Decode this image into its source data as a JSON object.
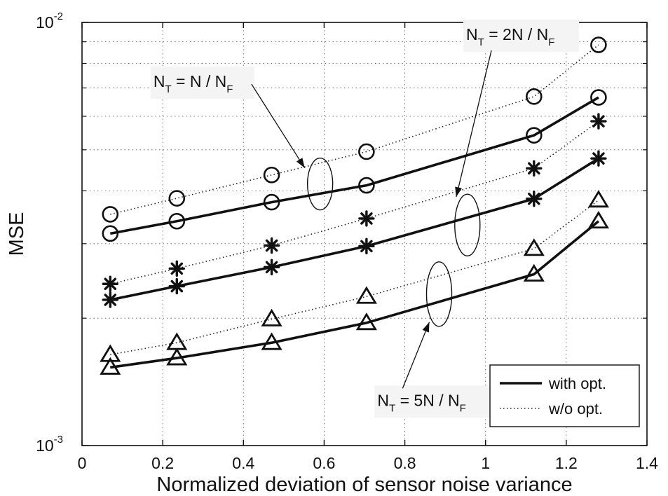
{
  "chart_data": {
    "type": "line",
    "title": "",
    "xlabel": "Normalized deviation of sensor noise variance",
    "ylabel": "MSE",
    "xlim": [
      0,
      1.4
    ],
    "ylim": [
      0.001,
      0.01
    ],
    "yscale": "log",
    "grid": true,
    "x_ticks": [
      "0",
      "0.2",
      "0.4",
      "0.6",
      "0.8",
      "1",
      "1.2",
      "1.4"
    ],
    "y_ticks": [
      {
        "base": "10",
        "exp": "-3"
      },
      {
        "base": "10",
        "exp": "-2"
      }
    ],
    "x": [
      0.07,
      0.235,
      0.47,
      0.705,
      1.12,
      1.28
    ],
    "series": [
      {
        "group": 1,
        "style": "dotted",
        "marker": "circle",
        "values": [
          0.00352,
          0.00384,
          0.00436,
          0.00495,
          0.00668,
          0.00885
        ]
      },
      {
        "group": 1,
        "style": "solid",
        "marker": "circle",
        "values": [
          0.00317,
          0.00339,
          0.00376,
          0.00412,
          0.00541,
          0.00665
        ]
      },
      {
        "group": 2,
        "style": "dotted",
        "marker": "asterisk",
        "values": [
          0.00241,
          0.00262,
          0.00297,
          0.00344,
          0.00452,
          0.00584
        ]
      },
      {
        "group": 2,
        "style": "solid",
        "marker": "asterisk",
        "values": [
          0.00221,
          0.00238,
          0.00264,
          0.00296,
          0.00383,
          0.00477
        ]
      },
      {
        "group": 3,
        "style": "dotted",
        "marker": "triangle",
        "values": [
          0.00164,
          0.00175,
          0.00199,
          0.00225,
          0.00292,
          0.0038
        ]
      },
      {
        "group": 3,
        "style": "solid",
        "marker": "triangle",
        "values": [
          0.00153,
          0.00161,
          0.00175,
          0.00195,
          0.00254,
          0.00339
        ]
      }
    ],
    "legend": {
      "placement": "bottom-right",
      "entries": [
        {
          "label": "with opt.",
          "style": "solid"
        },
        {
          "label": "w/o opt.",
          "style": "dotted"
        }
      ]
    },
    "annotations": [
      {
        "group": 1,
        "parts": {
          "a": "N",
          "a_sub": "T",
          "mid": " = N / N",
          "b_sub": "F"
        },
        "ellipse": {
          "x": 0.59,
          "y": 0.00415
        },
        "label_at": {
          "x": 0.17,
          "y": 0.0072
        }
      },
      {
        "group": 2,
        "parts": {
          "a": "N",
          "a_sub": "T",
          "mid": " = 2N / N",
          "b_sub": "F"
        },
        "ellipse": {
          "x": 0.955,
          "y": 0.00332
        },
        "label_at": {
          "x": 0.945,
          "y": 0.0093
        }
      },
      {
        "group": 3,
        "parts": {
          "a": "N",
          "a_sub": "T",
          "mid": " = 5N / N",
          "b_sub": "F"
        },
        "ellipse": {
          "x": 0.885,
          "y": 0.00228
        },
        "label_at": {
          "x": 0.725,
          "y": 0.00127
        }
      }
    ]
  }
}
